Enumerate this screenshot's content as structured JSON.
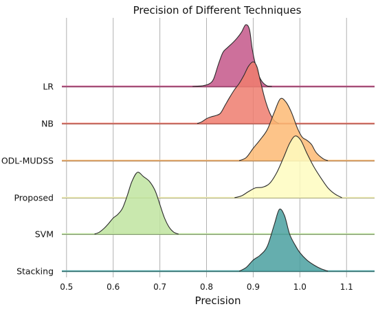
{
  "chart_data": {
    "type": "ridgeline",
    "title": "Precision of Different Techniques",
    "xlabel": "Precision",
    "ylabel": "",
    "xlim": [
      0.49,
      1.16
    ],
    "x_ticks": [
      0.5,
      0.6,
      0.7,
      0.8,
      0.9,
      1.0,
      1.1
    ],
    "x_tick_labels": [
      "0.5",
      "0.6",
      "0.7",
      "0.8",
      "0.9",
      "1.0",
      "1.1"
    ],
    "grid": "vertical",
    "series": [
      {
        "name": "LR",
        "color": "#c4578a",
        "density": [
          [
            0.77,
            0
          ],
          [
            0.79,
            0.01
          ],
          [
            0.805,
            0.04
          ],
          [
            0.815,
            0.12
          ],
          [
            0.825,
            0.35
          ],
          [
            0.835,
            0.55
          ],
          [
            0.845,
            0.63
          ],
          [
            0.855,
            0.7
          ],
          [
            0.865,
            0.78
          ],
          [
            0.875,
            0.88
          ],
          [
            0.884,
            1.0
          ],
          [
            0.892,
            0.92
          ],
          [
            0.898,
            0.6
          ],
          [
            0.905,
            0.35
          ],
          [
            0.912,
            0.18
          ],
          [
            0.92,
            0.07
          ],
          [
            0.93,
            0.01
          ],
          [
            0.94,
            0
          ]
        ]
      },
      {
        "name": "NB",
        "color": "#ee7c6e",
        "density": [
          [
            0.78,
            0
          ],
          [
            0.79,
            0.03
          ],
          [
            0.8,
            0.08
          ],
          [
            0.81,
            0.11
          ],
          [
            0.82,
            0.13
          ],
          [
            0.83,
            0.17
          ],
          [
            0.84,
            0.3
          ],
          [
            0.85,
            0.43
          ],
          [
            0.86,
            0.55
          ],
          [
            0.87,
            0.65
          ],
          [
            0.88,
            0.78
          ],
          [
            0.89,
            0.93
          ],
          [
            0.9,
            1.0
          ],
          [
            0.908,
            0.92
          ],
          [
            0.915,
            0.7
          ],
          [
            0.925,
            0.4
          ],
          [
            0.935,
            0.18
          ],
          [
            0.945,
            0.05
          ],
          [
            0.955,
            0
          ]
        ]
      },
      {
        "name": "ODL-MUDSS",
        "color": "#fdba74",
        "density": [
          [
            0.87,
            0
          ],
          [
            0.885,
            0.05
          ],
          [
            0.9,
            0.2
          ],
          [
            0.915,
            0.34
          ],
          [
            0.93,
            0.5
          ],
          [
            0.945,
            0.78
          ],
          [
            0.958,
            1.0
          ],
          [
            0.97,
            0.95
          ],
          [
            0.982,
            0.78
          ],
          [
            0.995,
            0.52
          ],
          [
            1.005,
            0.38
          ],
          [
            1.015,
            0.33
          ],
          [
            1.025,
            0.26
          ],
          [
            1.035,
            0.13
          ],
          [
            1.05,
            0.03
          ],
          [
            1.06,
            0
          ]
        ]
      },
      {
        "name": "Proposed",
        "color": "#fefcbf",
        "density": [
          [
            0.86,
            0
          ],
          [
            0.875,
            0.03
          ],
          [
            0.89,
            0.1
          ],
          [
            0.905,
            0.16
          ],
          [
            0.92,
            0.17
          ],
          [
            0.935,
            0.23
          ],
          [
            0.95,
            0.4
          ],
          [
            0.965,
            0.65
          ],
          [
            0.978,
            0.88
          ],
          [
            0.99,
            1.0
          ],
          [
            1.002,
            0.93
          ],
          [
            1.015,
            0.72
          ],
          [
            1.03,
            0.5
          ],
          [
            1.045,
            0.32
          ],
          [
            1.06,
            0.16
          ],
          [
            1.075,
            0.06
          ],
          [
            1.09,
            0
          ]
        ]
      },
      {
        "name": "SVM",
        "color": "#bfe4a0",
        "density": [
          [
            0.56,
            0
          ],
          [
            0.57,
            0.03
          ],
          [
            0.58,
            0.09
          ],
          [
            0.59,
            0.17
          ],
          [
            0.6,
            0.26
          ],
          [
            0.61,
            0.32
          ],
          [
            0.62,
            0.42
          ],
          [
            0.63,
            0.62
          ],
          [
            0.64,
            0.85
          ],
          [
            0.652,
            1.0
          ],
          [
            0.665,
            0.93
          ],
          [
            0.678,
            0.85
          ],
          [
            0.69,
            0.7
          ],
          [
            0.7,
            0.48
          ],
          [
            0.71,
            0.26
          ],
          [
            0.72,
            0.11
          ],
          [
            0.73,
            0.03
          ],
          [
            0.74,
            0
          ]
        ]
      },
      {
        "name": "Stacking",
        "color": "#4aa0a0",
        "density": [
          [
            0.87,
            0
          ],
          [
            0.885,
            0.06
          ],
          [
            0.9,
            0.18
          ],
          [
            0.915,
            0.26
          ],
          [
            0.93,
            0.4
          ],
          [
            0.945,
            0.75
          ],
          [
            0.956,
            1.0
          ],
          [
            0.967,
            0.9
          ],
          [
            0.978,
            0.6
          ],
          [
            0.99,
            0.42
          ],
          [
            1.0,
            0.3
          ],
          [
            1.015,
            0.18
          ],
          [
            1.03,
            0.1
          ],
          [
            1.045,
            0.04
          ],
          [
            1.06,
            0
          ]
        ]
      }
    ]
  }
}
